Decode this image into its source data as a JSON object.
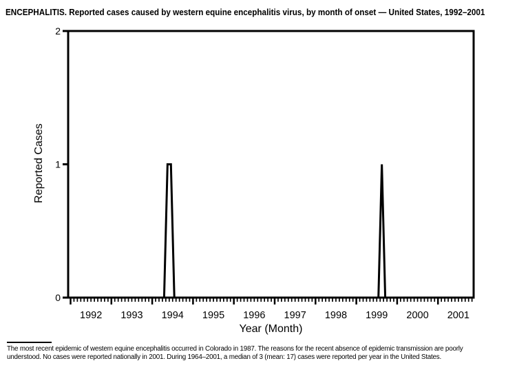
{
  "page": {
    "background_color": "#ffffff",
    "foreground_color": "#000000"
  },
  "chart_data": {
    "type": "line",
    "title": "ENCEPHALITIS. Reported cases caused by western equine encephalitis virus, by month of onset — United States, 1992–2001",
    "xlabel": "Year (Month)",
    "ylabel": "Reported Cases",
    "ylim": [
      0,
      2
    ],
    "yticks": [
      0,
      1,
      2
    ],
    "years": [
      1992,
      1993,
      1994,
      1995,
      1996,
      1997,
      1998,
      1999,
      2000,
      2001
    ],
    "x_unit": "month",
    "x_range": [
      "1992-01",
      "2001-12"
    ],
    "grid": "off",
    "line_color": "#000000",
    "baseline_value": 0,
    "all_other_months": 0,
    "points": [
      {
        "month": "1994-05",
        "cases": 1
      },
      {
        "month": "1994-06",
        "cases": 1
      },
      {
        "month": "1999-08",
        "cases": 1
      }
    ]
  },
  "footer": {
    "lines": [
      "The most recent epidemic of western equine encephalitis occurred in Colorado in 1987. The reasons for the recent absence of epidemic transmission are poorly",
      "understood. No cases were reported nationally in 2001. During 1964–2001, a median of 3 (mean: 17) cases were reported per year in the United States."
    ]
  }
}
